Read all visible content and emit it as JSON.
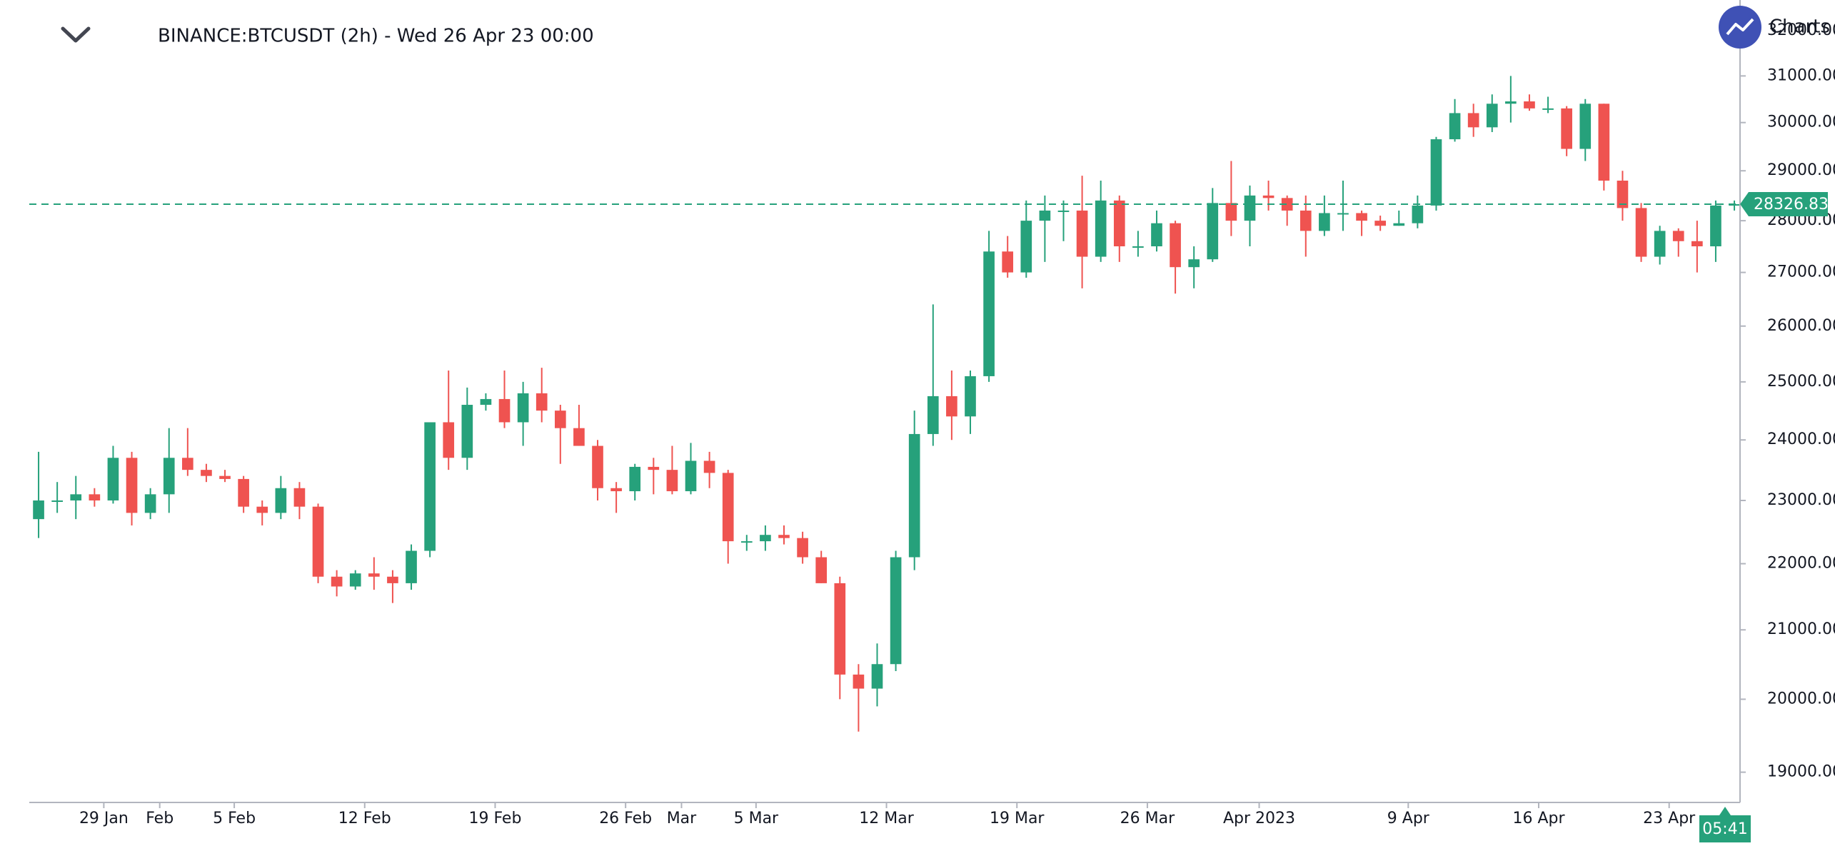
{
  "chart_data": {
    "type": "candlestick",
    "title": "BINANCE:BTCUSDT (2h) - Wed 26 Apr 23 00:00",
    "brand": "Charts",
    "countdown": "05:41",
    "last_price": 28326.83,
    "log_scale": true,
    "up_color": "#26a17b",
    "down_color": "#ef5350",
    "ylim": [
      18600,
      32700
    ],
    "yticks": [
      {
        "value": 19000,
        "label": "19000.00"
      },
      {
        "value": 20000,
        "label": "20000.00"
      },
      {
        "value": 21000,
        "label": "21000.00"
      },
      {
        "value": 22000,
        "label": "22000.00"
      },
      {
        "value": 23000,
        "label": "23000.00"
      },
      {
        "value": 24000,
        "label": "24000.00"
      },
      {
        "value": 25000,
        "label": "25000.00"
      },
      {
        "value": 26000,
        "label": "26000.00"
      },
      {
        "value": 27000,
        "label": "27000.00"
      },
      {
        "value": 28000,
        "label": "28000.00"
      },
      {
        "value": 29000,
        "label": "29000.00"
      },
      {
        "value": 30000,
        "label": "30000.00"
      },
      {
        "value": 31000,
        "label": "31000.00"
      },
      {
        "value": 32000,
        "label": "32000.00"
      }
    ],
    "categories": [
      null,
      null,
      null,
      null,
      "29 Jan",
      null,
      null,
      "Feb",
      null,
      null,
      null,
      "5 Feb",
      null,
      null,
      null,
      null,
      null,
      null,
      "12 Feb",
      null,
      null,
      null,
      null,
      null,
      null,
      "19 Feb",
      null,
      null,
      null,
      null,
      null,
      null,
      "26 Feb",
      null,
      null,
      "Mar",
      null,
      null,
      null,
      "5 Mar",
      null,
      null,
      null,
      null,
      null,
      null,
      "12 Mar",
      null,
      null,
      null,
      null,
      null,
      null,
      "19 Mar",
      null,
      null,
      null,
      null,
      null,
      null,
      "26 Mar",
      null,
      null,
      null,
      null,
      null,
      "Apr 2023",
      null,
      null,
      null,
      null,
      null,
      null,
      null,
      "9 Apr",
      null,
      null,
      null,
      null,
      null,
      null,
      "16 Apr",
      null,
      null,
      null,
      null,
      null,
      null,
      "23 Apr",
      null,
      null,
      null
    ],
    "open": [
      22700,
      23000,
      23000,
      23100,
      23000,
      23700,
      22800,
      23100,
      23700,
      23500,
      23400,
      23350,
      22900,
      22800,
      23200,
      22900,
      21800,
      21650,
      21850,
      21800,
      21700,
      22200,
      24300,
      23700,
      24600,
      24700,
      24300,
      24800,
      24500,
      24200,
      23900,
      23200,
      23150,
      23550,
      23500,
      23150,
      23650,
      23450,
      22350,
      22350,
      22450,
      22400,
      22100,
      21700,
      20350,
      20150,
      20500,
      22100,
      24100,
      24750,
      24400,
      25100,
      27400,
      27000,
      28000,
      28200,
      28200,
      27300,
      28400,
      27500,
      27500,
      27950,
      27100,
      27250,
      28350,
      28000,
      28500,
      28450,
      28200,
      27800,
      28150,
      28150,
      28000,
      27900,
      27950,
      28300,
      29650,
      30200,
      29900,
      30400,
      30450,
      30300,
      30300,
      29450,
      30400,
      28800,
      28250,
      27300,
      27800,
      27600,
      27500,
      28300
    ],
    "high": [
      23800,
      23300,
      23400,
      23200,
      23900,
      23800,
      23200,
      24200,
      24200,
      23600,
      23500,
      23400,
      23000,
      23400,
      23300,
      22950,
      21900,
      21900,
      22100,
      21900,
      22300,
      24300,
      25200,
      24900,
      24800,
      25200,
      25000,
      25250,
      24600,
      24600,
      24000,
      23300,
      23600,
      23700,
      23900,
      23950,
      23800,
      23500,
      22450,
      22600,
      22600,
      22500,
      22200,
      21800,
      20500,
      20800,
      22200,
      24500,
      26400,
      25200,
      25200,
      27800,
      27700,
      28400,
      28500,
      28400,
      28900,
      28800,
      28500,
      27800,
      28200,
      28000,
      27500,
      28650,
      29200,
      28700,
      28800,
      28500,
      28500,
      28500,
      28800,
      28200,
      28100,
      28200,
      28500,
      29700,
      30500,
      30400,
      30600,
      31000,
      30600,
      30550,
      30350,
      30500,
      30400,
      29000,
      28350,
      27900,
      27850,
      28000,
      28400,
      28400
    ],
    "low": [
      22400,
      22800,
      22700,
      22900,
      22950,
      22600,
      22700,
      22800,
      23400,
      23300,
      23300,
      22800,
      22600,
      22700,
      22700,
      21700,
      21500,
      21600,
      21600,
      21400,
      21600,
      22100,
      23500,
      23500,
      24500,
      24200,
      23900,
      24300,
      23600,
      23900,
      23000,
      22800,
      23000,
      23100,
      23100,
      23100,
      23200,
      22000,
      22200,
      22200,
      22300,
      22000,
      21700,
      20000,
      19550,
      19900,
      20400,
      21900,
      23900,
      24000,
      24100,
      25000,
      26900,
      26900,
      27200,
      27600,
      26700,
      27200,
      27200,
      27300,
      27400,
      26600,
      26700,
      27200,
      27700,
      27500,
      28200,
      27900,
      27300,
      27700,
      27800,
      27700,
      27800,
      27900,
      27850,
      28200,
      29600,
      29700,
      29800,
      30000,
      30250,
      30200,
      29300,
      29200,
      28600,
      28000,
      27200,
      27150,
      27300,
      27000,
      27200,
      28200
    ],
    "close": [
      23000,
      23000,
      23100,
      23000,
      23700,
      22800,
      23100,
      23700,
      23500,
      23400,
      23350,
      22900,
      22800,
      23200,
      22900,
      21800,
      21650,
      21850,
      21800,
      21700,
      22200,
      24300,
      23700,
      24600,
      24700,
      24300,
      24800,
      24500,
      24200,
      23900,
      23200,
      23150,
      23550,
      23500,
      23150,
      23650,
      23450,
      22350,
      22350,
      22450,
      22400,
      22100,
      21700,
      20350,
      20150,
      20500,
      22100,
      24100,
      24750,
      24400,
      25100,
      27400,
      27000,
      28000,
      28200,
      28200,
      27300,
      28400,
      27500,
      27500,
      27950,
      27100,
      27250,
      28350,
      28000,
      28500,
      28450,
      28200,
      27800,
      28150,
      28150,
      28000,
      27900,
      27950,
      28300,
      29650,
      30200,
      29900,
      30400,
      30450,
      30300,
      30300,
      29450,
      30400,
      28800,
      28250,
      27300,
      27800,
      27600,
      27500,
      28300,
      28326.83
    ]
  }
}
